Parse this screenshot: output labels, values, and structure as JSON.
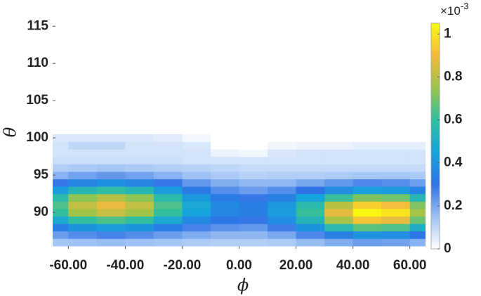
{
  "chart_data": {
    "type": "contour",
    "x_label": "ϕ",
    "y_label": "θ",
    "x": [
      -65,
      -55,
      -45,
      -35,
      -25,
      -15,
      -5,
      5,
      15,
      25,
      35,
      45,
      55,
      65
    ],
    "y": [
      86,
      87,
      88,
      89,
      90,
      91,
      92,
      93,
      94,
      95,
      96,
      97,
      98,
      99,
      100
    ],
    "z": [
      [
        0.14,
        0.15,
        0.16,
        0.15,
        0.14,
        0.13,
        0.12,
        0.12,
        0.13,
        0.16,
        0.19,
        0.22,
        0.21,
        0.18
      ],
      [
        0.22,
        0.25,
        0.27,
        0.25,
        0.22,
        0.19,
        0.17,
        0.17,
        0.2,
        0.26,
        0.34,
        0.4,
        0.38,
        0.31
      ],
      [
        0.33,
        0.4,
        0.43,
        0.4,
        0.33,
        0.27,
        0.24,
        0.23,
        0.28,
        0.4,
        0.56,
        0.66,
        0.64,
        0.5
      ],
      [
        0.48,
        0.6,
        0.64,
        0.6,
        0.48,
        0.37,
        0.31,
        0.29,
        0.38,
        0.54,
        0.77,
        0.92,
        0.88,
        0.68
      ],
      [
        0.6,
        0.76,
        0.82,
        0.76,
        0.6,
        0.45,
        0.36,
        0.34,
        0.43,
        0.61,
        0.87,
        1.04,
        1,
        0.77
      ],
      [
        0.64,
        0.81,
        0.88,
        0.81,
        0.64,
        0.47,
        0.37,
        0.33,
        0.41,
        0.57,
        0.8,
        0.95,
        0.91,
        0.71
      ],
      [
        0.57,
        0.73,
        0.79,
        0.73,
        0.57,
        0.42,
        0.33,
        0.29,
        0.34,
        0.45,
        0.61,
        0.71,
        0.69,
        0.55
      ],
      [
        0.43,
        0.55,
        0.59,
        0.55,
        0.43,
        0.32,
        0.25,
        0.22,
        0.25,
        0.3,
        0.38,
        0.44,
        0.42,
        0.35
      ],
      [
        0.29,
        0.36,
        0.39,
        0.36,
        0.29,
        0.23,
        0.19,
        0.17,
        0.17,
        0.2,
        0.23,
        0.26,
        0.25,
        0.22
      ],
      [
        0.18,
        0.21,
        0.23,
        0.21,
        0.18,
        0.15,
        0.13,
        0.11,
        0.12,
        0.12,
        0.13,
        0.14,
        0.14,
        0.13
      ],
      [
        0.12,
        0.13,
        0.14,
        0.13,
        0.12,
        0.11,
        0.1,
        0.09,
        0.09,
        0.09,
        0.09,
        0.09,
        0.09,
        0.09
      ],
      [
        0.08,
        0.08,
        0.08,
        0.08,
        0.08,
        0.07,
        0.07,
        0.07,
        0.07,
        0.07,
        0.07,
        0.07,
        0.07,
        0.07
      ],
      [
        0.07,
        0.07,
        0.07,
        0.07,
        0.07,
        0.07,
        0.03,
        0.02,
        0.06,
        0.07,
        0.07,
        0.07,
        0.07,
        0.07
      ],
      [
        0.07,
        0.1,
        0.1,
        0.07,
        0.07,
        0.06,
        0,
        0,
        0.02,
        0.03,
        0.03,
        0.04,
        0.04,
        0.04
      ],
      [
        0.06,
        0.06,
        0.06,
        0.06,
        0.05,
        0.02,
        0,
        0,
        0,
        0,
        0,
        0,
        0,
        0
      ]
    ],
    "xlim": [
      -65.5,
      65.5
    ],
    "ylim": [
      85.1,
      115.4
    ],
    "xticks": [
      {
        "value": -60,
        "label": "-60.00"
      },
      {
        "value": -40,
        "label": "-40.00"
      },
      {
        "value": -20,
        "label": "-20.00"
      },
      {
        "value": 0,
        "label": "0.00"
      },
      {
        "value": 20,
        "label": "20.00"
      },
      {
        "value": 40,
        "label": "40.00"
      },
      {
        "value": 60,
        "label": "60.00"
      }
    ],
    "yticks": [
      90,
      95,
      100,
      105,
      110,
      115
    ],
    "colorbar": {
      "lim": [
        0,
        1.05
      ],
      "ticks": [
        0,
        0.2,
        0.4,
        0.6,
        0.8,
        1
      ],
      "multiplier": "×10",
      "exponent": "-3"
    },
    "colormap": [
      "#ffffff",
      "#9ec2f4",
      "#2f73e6",
      "#16a4dc",
      "#31bfa0",
      "#9bc54a",
      "#f5b93c",
      "#f9fb0e"
    ],
    "grid": false
  }
}
